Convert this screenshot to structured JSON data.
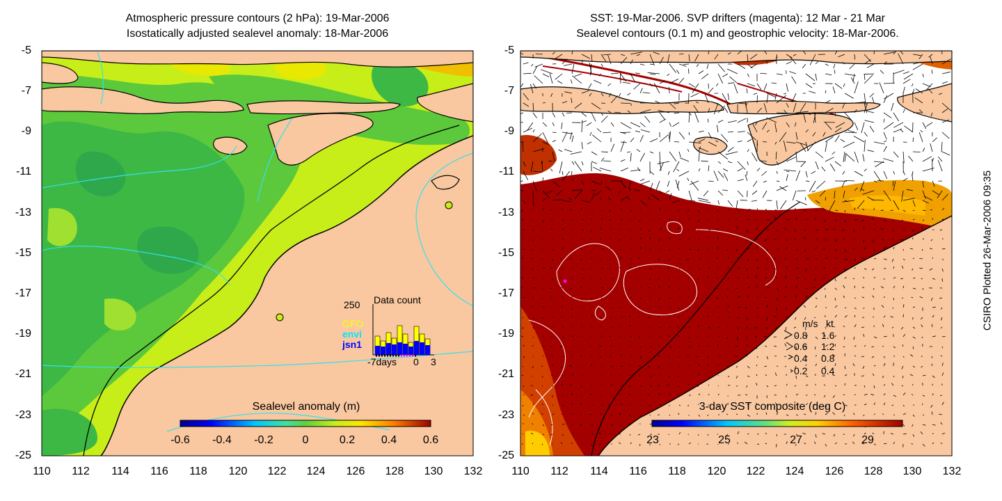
{
  "left_panel": {
    "title_line1": "Atmospheric pressure contours (2 hPa): 19-Mar-2006",
    "title_line2": "Isostatically adjusted sealevel anomaly: 18-Mar-2006",
    "colorbar_title": "Sealevel anomaly (m)",
    "colorbar_ticks": [
      "-0.6",
      "-0.4",
      "-0.2",
      "0",
      "0.2",
      "0.4",
      "0.6"
    ],
    "inset": {
      "title": "Data count",
      "ymax_label": "250",
      "x_labels": [
        "-7days",
        "0",
        "3"
      ],
      "satellites": [
        {
          "name": "GFO",
          "color": "#ffff00"
        },
        {
          "name": "envi",
          "color": "#00e5ff"
        },
        {
          "name": "jsn1",
          "color": "#0000ff"
        }
      ]
    }
  },
  "right_panel": {
    "title_line1": "SST: 19-Mar-2006. SVP drifters (magenta): 12 Mar - 21 Mar",
    "title_line2": "Sealevel contours (0.1 m) and geostrophic velocity: 18-Mar-2006.",
    "colorbar_title": "3-day SST composite (deg C)",
    "colorbar_ticks": [
      "23",
      "25",
      "27",
      "29"
    ],
    "vector_legend": {
      "header_ms": "m/s",
      "header_kt": "kt",
      "rows": [
        {
          "ms": "0.8",
          "kt": "1.6"
        },
        {
          "ms": "0.6",
          "kt": "1.2"
        },
        {
          "ms": "0.4",
          "kt": "0.8"
        },
        {
          "ms": "0.2",
          "kt": "0.4"
        }
      ]
    }
  },
  "axes": {
    "y_ticks": [
      "-5",
      "-7",
      "-9",
      "-11",
      "-13",
      "-15",
      "-17",
      "-19",
      "-21",
      "-23",
      "-25"
    ],
    "x_ticks": [
      "110",
      "112",
      "114",
      "116",
      "118",
      "120",
      "122",
      "124",
      "126",
      "128",
      "130",
      "132"
    ]
  },
  "side_text": "CSIRO Plotted 26-Mar-2006 09:35",
  "colors": {
    "land": "#f9c8a0",
    "sea_green": "#5cc83c",
    "sea_lime": "#c8ee1a",
    "sst_dark": "#a40000",
    "sst_mid": "#d24000",
    "contour_cyan": "#33e0ee",
    "drifter": "#ff00ff"
  }
}
